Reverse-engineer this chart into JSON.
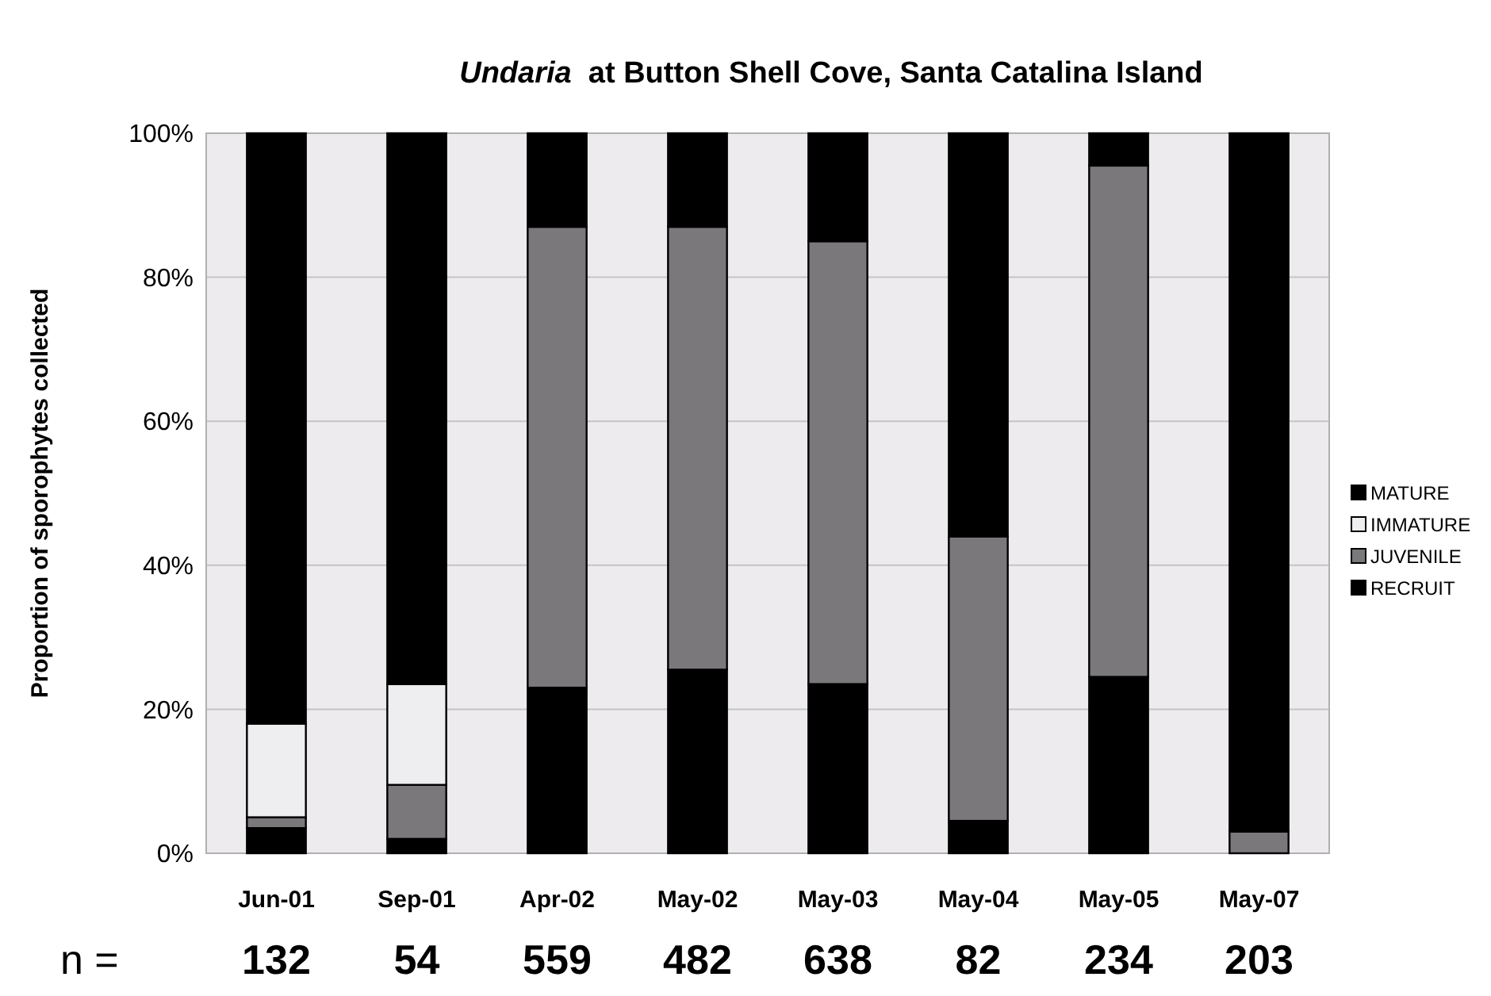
{
  "chart_data": {
    "type": "bar",
    "stacked": true,
    "title": "Undaria at Button Shell Cove, Santa Catalina Island",
    "ylabel": "Proportion of sporophytes collected",
    "categories": [
      "Jun-01",
      "Sep-01",
      "Apr-02",
      "May-02",
      "May-03",
      "May-04",
      "May-05",
      "May-07"
    ],
    "series": [
      {
        "name": "RECRUIT",
        "color": "#000000",
        "values": [
          3.5,
          2,
          23,
          25.5,
          23.5,
          4.5,
          24.5,
          0
        ]
      },
      {
        "name": "JUVENILE",
        "color": "#7a787b",
        "values": [
          1.5,
          7.5,
          64,
          61.5,
          61.5,
          39.5,
          71,
          3
        ]
      },
      {
        "name": "IMMATURE",
        "color": "#eeedf0",
        "values": [
          13,
          14,
          0,
          0,
          0,
          0,
          0,
          0
        ]
      },
      {
        "name": "MATURE",
        "color": "#000000",
        "values": [
          82,
          76.5,
          13,
          13,
          15,
          56,
          4.5,
          97
        ]
      }
    ],
    "ylim": [
      0,
      100
    ],
    "yticks": [
      {
        "value": 0,
        "label": "0%"
      },
      {
        "value": 20,
        "label": "20%"
      },
      {
        "value": 40,
        "label": "40%"
      },
      {
        "value": 60,
        "label": "60%"
      },
      {
        "value": 80,
        "label": "80%"
      },
      {
        "value": 100,
        "label": "100%"
      }
    ],
    "grid": "y",
    "legend": "right",
    "annotations": [
      "n =",
      "132",
      "54",
      "559",
      "482",
      "638",
      "82",
      "234",
      "203"
    ]
  }
}
